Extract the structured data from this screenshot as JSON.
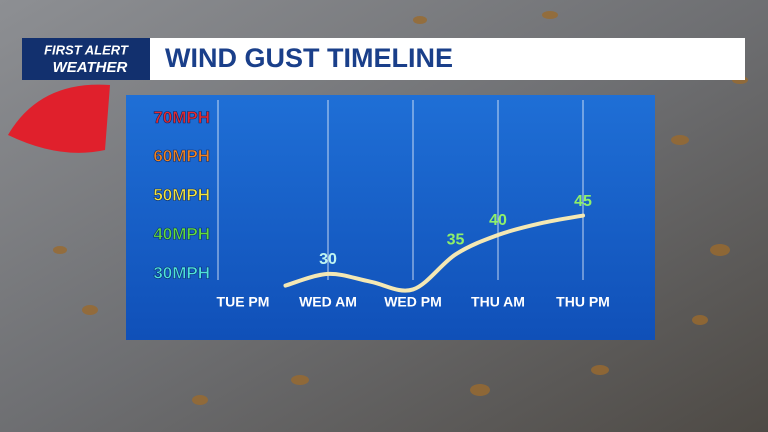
{
  "chart_data": {
    "type": "line",
    "logo": [
      "FIRST ALERT",
      "WEATHER"
    ],
    "title": "WIND GUST TIMELINE",
    "categories": [
      "TUE PM",
      null,
      "WED AM",
      null,
      "WED PM",
      null,
      "THU AM",
      null,
      "THU PM"
    ],
    "series": [
      {
        "name": "Wind gust",
        "color": "#f4e8b4",
        "values": [
          null,
          27,
          30,
          28,
          26,
          35,
          40,
          43,
          45
        ],
        "value_labels": [
          null,
          null,
          "30",
          null,
          null,
          "35",
          "40",
          null,
          "45"
        ],
        "label_colors": [
          null,
          null,
          "#bff4f0",
          null,
          null,
          "#8ff06a",
          "#8ff06a",
          null,
          "#8ff06a"
        ]
      }
    ],
    "ylim": [
      13,
      76
    ],
    "yticks": [
      {
        "value": 30,
        "label": "30MPH"
      },
      {
        "value": 40,
        "label": "40MPH"
      },
      {
        "value": 50,
        "label": "50MPH"
      },
      {
        "value": 60,
        "label": "60MPH"
      },
      {
        "value": 70,
        "label": "70MPH"
      }
    ],
    "ytick_colors": [
      "#4fe3da",
      "#62dd3c",
      "#f4e43c",
      "#f2821e",
      "#e8282c"
    ],
    "grid": true
  }
}
